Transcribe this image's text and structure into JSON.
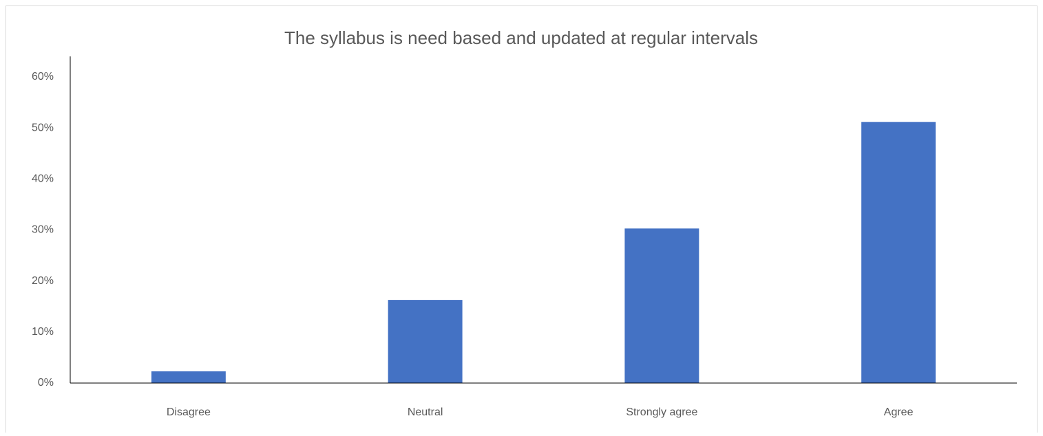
{
  "chart_data": {
    "type": "bar",
    "title": "The syllabus is need based and updated at regular intervals",
    "categories": [
      "Disagree",
      "Neutral",
      "Strongly agree",
      "Agree"
    ],
    "values": [
      2.3,
      16.3,
      30.3,
      51.2
    ],
    "color": "#4472c4",
    "ylim": [
      0,
      60
    ],
    "yticks": [
      {
        "value": 0,
        "label": "0%"
      },
      {
        "value": 10,
        "label": "10%"
      },
      {
        "value": 20,
        "label": "20%"
      },
      {
        "value": 30,
        "label": "30%"
      },
      {
        "value": 40,
        "label": "40%"
      },
      {
        "value": 50,
        "label": "50%"
      },
      {
        "value": 60,
        "label": "60%"
      }
    ],
    "grid": false
  }
}
